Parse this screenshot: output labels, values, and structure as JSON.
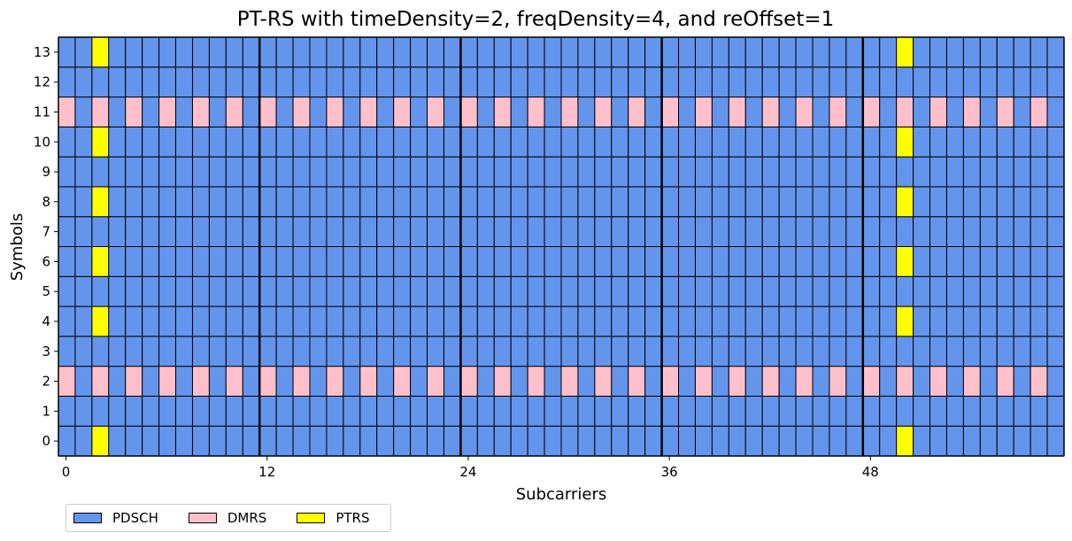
{
  "chart_data": {
    "type": "heatmap",
    "title": "PT-RS with timeDensity=2, freqDensity=4, and reOffset=1",
    "xlabel": "Subcarriers",
    "ylabel": "Symbols",
    "n_subcarriers": 60,
    "n_symbols": 14,
    "x_ticks": [
      0,
      12,
      24,
      36,
      48
    ],
    "y_ticks": [
      0,
      1,
      2,
      3,
      4,
      5,
      6,
      7,
      8,
      9,
      10,
      11,
      12,
      13
    ],
    "rb_boundaries": [
      12,
      24,
      36,
      48
    ],
    "default_type": "PDSCH",
    "dmrs_symbols": [
      2,
      11
    ],
    "dmrs_subcarrier_step": 2,
    "dmrs_subcarrier_offset": 0,
    "ptrs_symbols": [
      0,
      4,
      6,
      8,
      10,
      13
    ],
    "ptrs_subcarriers": [
      2,
      50
    ],
    "legend": [
      {
        "name": "PDSCH",
        "color": "#6495ED"
      },
      {
        "name": "DMRS",
        "color": "#FFC0CB"
      },
      {
        "name": "PTRS",
        "color": "#FFFF00"
      }
    ],
    "legend_position": "lower-left-outside",
    "grid": true
  }
}
